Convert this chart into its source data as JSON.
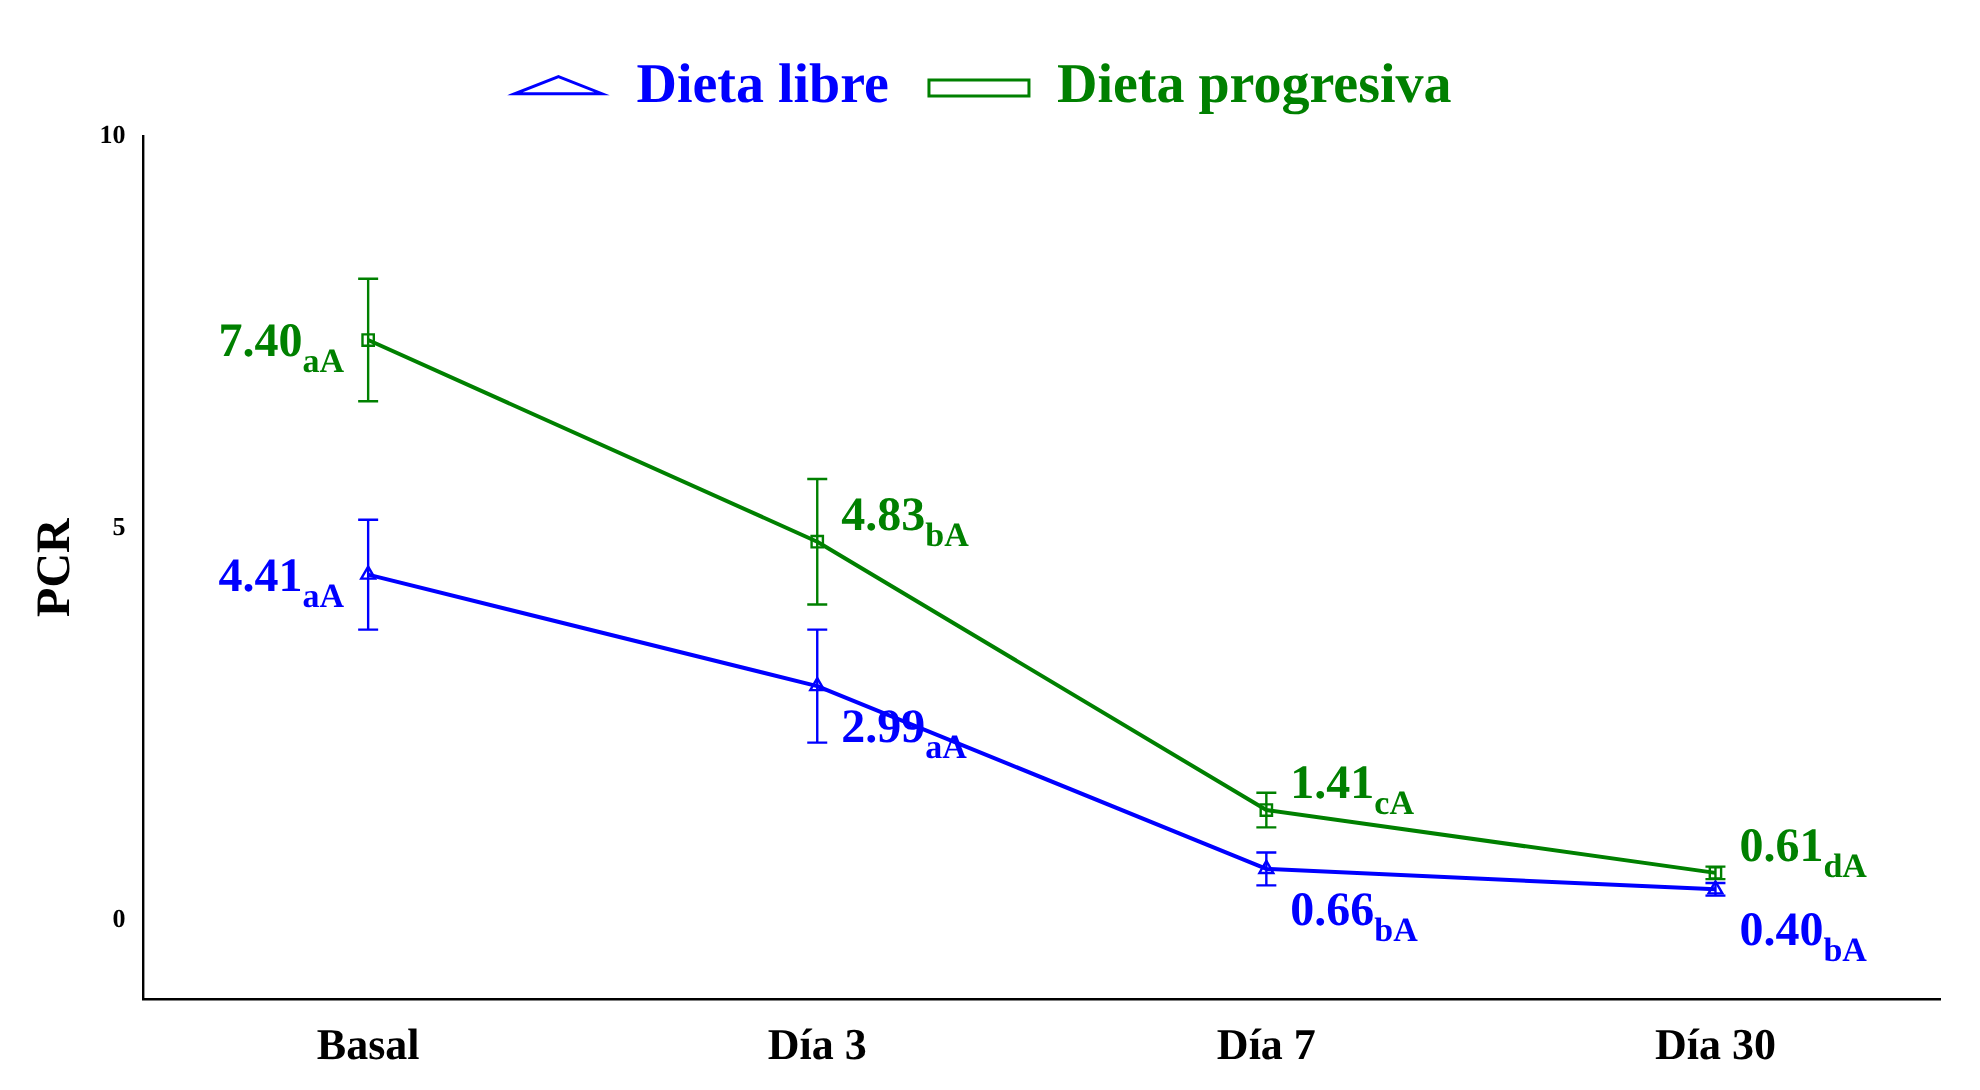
{
  "chart_data": {
    "type": "line",
    "ylabel": "PCR",
    "categories": [
      "Basal",
      "Día 3",
      "Día 7",
      "Día 30"
    ],
    "series": [
      {
        "name": "Dieta libre",
        "color": "#0000ff",
        "marker": "triangle",
        "values": [
          4.41,
          2.99,
          0.66,
          0.4
        ],
        "errors": [
          0.7,
          0.72,
          0.21,
          0.08
        ],
        "value_labels": [
          "4.41$_{aA}$",
          "2.99$_{aA}$",
          "0.66$_{bA}$",
          "0.40$_{bA}$"
        ]
      },
      {
        "name": "Dieta progresiva",
        "color": "#008000",
        "marker": "square",
        "values": [
          7.4,
          4.83,
          1.41,
          0.61
        ],
        "errors": [
          0.78,
          0.8,
          0.22,
          0.08
        ],
        "value_labels": [
          "7.40$_{aA}$",
          "4.83$_{bA}$",
          "1.41$_{cA}$",
          "0.61$_{dA}$"
        ]
      }
    ],
    "ylim": [
      -1,
      10
    ],
    "yticks": [
      0,
      5,
      10
    ],
    "grid": false,
    "legend": "top",
    "line_style": "solid"
  }
}
